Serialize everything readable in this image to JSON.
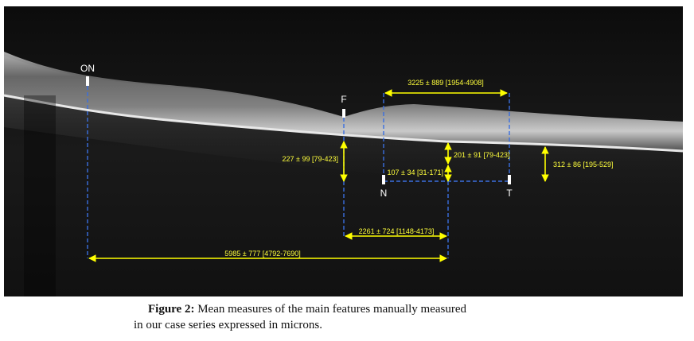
{
  "figure": {
    "labels": {
      "on": "ON",
      "f": "F",
      "n": "N",
      "t": "T"
    },
    "measures": {
      "fovea_depth": "227 ± 99 [79-423]",
      "nt_width": "3225 ± 889 [1954-4908]",
      "upper": "201 ± 91 [79-423]",
      "lower": "107 ± 34 [31-171]",
      "temporal": "312 ± 86 [195-529]",
      "fovea_dist": "2261 ± 724 [1148-4173]",
      "on_dist": "5985 ± 777 [4792-7690]"
    }
  },
  "caption": {
    "label": "Figure 2:",
    "line1": "Mean measures of the main features manually measured",
    "line2": "in our case series expressed in microns."
  }
}
